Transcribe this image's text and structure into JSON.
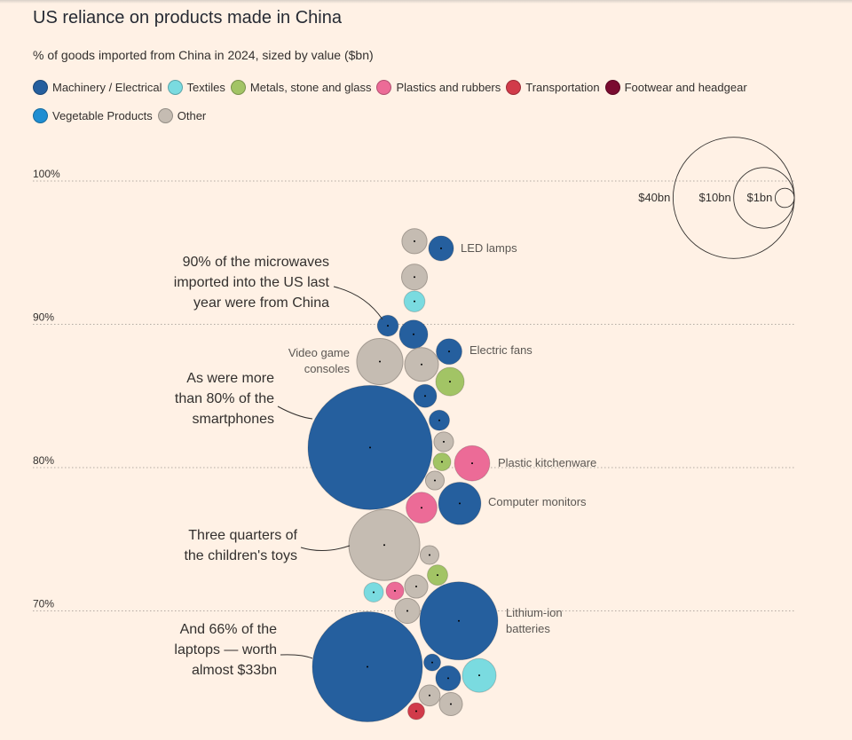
{
  "chart_data": {
    "type": "bubble-beeswarm",
    "title": "US reliance on products made in China",
    "subtitle": "% of goods imported from China in 2024, sized by value ($bn)",
    "y_axis": {
      "ticks": [
        100,
        90,
        80,
        70
      ],
      "tick_labels": [
        "100%",
        "90%",
        "80%",
        "70%"
      ],
      "range": [
        62,
        100
      ],
      "grid": "dotted"
    },
    "legend": [
      {
        "name": "Machinery / Electrical",
        "key": "machinery",
        "color": "#255f9e"
      },
      {
        "name": "Textiles",
        "key": "textiles",
        "color": "#7adbe0"
      },
      {
        "name": "Metals, stone and glass",
        "key": "metals",
        "color": "#a2c465"
      },
      {
        "name": "Plastics and rubbers",
        "key": "plastics",
        "color": "#ec6b97"
      },
      {
        "name": "Transportation",
        "key": "transport",
        "color": "#d13b4a"
      },
      {
        "name": "Footwear and headgear",
        "key": "footwear",
        "color": "#7a0b30"
      },
      {
        "name": "Vegetable Products",
        "key": "vegetable",
        "color": "#1f8ed2"
      },
      {
        "name": "Other",
        "key": "other",
        "color": "#c5bcb2"
      }
    ],
    "size_key": [
      {
        "label": "$40bn",
        "value": 40
      },
      {
        "label": "$10bn",
        "value": 10
      },
      {
        "label": "$1bn",
        "value": 1
      }
    ],
    "bubbles": [
      {
        "pct": 95.8,
        "value": 1.7,
        "category": "other"
      },
      {
        "pct": 95.3,
        "value": 1.7,
        "category": "machinery",
        "label": "LED lamps"
      },
      {
        "pct": 93.3,
        "value": 1.8,
        "category": "other"
      },
      {
        "pct": 91.6,
        "value": 1.2,
        "category": "textiles"
      },
      {
        "pct": 89.9,
        "value": 1.2,
        "category": "machinery"
      },
      {
        "pct": 89.3,
        "value": 2.2,
        "category": "machinery"
      },
      {
        "pct": 87.4,
        "value": 5.8,
        "category": "other",
        "label": "Video game consoles"
      },
      {
        "pct": 88.1,
        "value": 1.8,
        "category": "machinery",
        "label": "Electric fans"
      },
      {
        "pct": 87.2,
        "value": 3.1,
        "category": "other"
      },
      {
        "pct": 86.0,
        "value": 2.2,
        "category": "metals"
      },
      {
        "pct": 85.0,
        "value": 1.45,
        "category": "machinery"
      },
      {
        "pct": 81.4,
        "value": 42,
        "category": "machinery"
      },
      {
        "pct": 83.3,
        "value": 1.13,
        "category": "machinery"
      },
      {
        "pct": 81.8,
        "value": 1.04,
        "category": "other"
      },
      {
        "pct": 80.4,
        "value": 0.86,
        "category": "metals"
      },
      {
        "pct": 80.3,
        "value": 3.4,
        "category": "plastics",
        "label": "Plastic kitchenware"
      },
      {
        "pct": 79.1,
        "value": 0.95,
        "category": "other"
      },
      {
        "pct": 77.5,
        "value": 4.9,
        "category": "machinery",
        "label": "Computer monitors"
      },
      {
        "pct": 77.2,
        "value": 2.6,
        "category": "plastics"
      },
      {
        "pct": 74.6,
        "value": 13.7,
        "category": "other"
      },
      {
        "pct": 73.9,
        "value": 0.95,
        "category": "other"
      },
      {
        "pct": 72.5,
        "value": 1.13,
        "category": "metals"
      },
      {
        "pct": 71.3,
        "value": 1.04,
        "category": "textiles"
      },
      {
        "pct": 71.4,
        "value": 0.86,
        "category": "plastics"
      },
      {
        "pct": 71.7,
        "value": 1.45,
        "category": "other"
      },
      {
        "pct": 70.0,
        "value": 1.7,
        "category": "other"
      },
      {
        "pct": 69.3,
        "value": 16.6,
        "category": "machinery",
        "label": "Lithium-ion batteries"
      },
      {
        "pct": 66.1,
        "value": 33,
        "category": "machinery"
      },
      {
        "pct": 66.4,
        "value": 0.77,
        "category": "machinery"
      },
      {
        "pct": 65.3,
        "value": 1.7,
        "category": "machinery"
      },
      {
        "pct": 65.5,
        "value": 3.1,
        "category": "textiles"
      },
      {
        "pct": 64.1,
        "value": 1.2,
        "category": "other"
      },
      {
        "pct": 63.5,
        "value": 1.45,
        "category": "other"
      },
      {
        "pct": 63.0,
        "value": 0.77,
        "category": "transport"
      }
    ],
    "annotations": [
      {
        "lines": [
          "90% of the microwaves",
          "imported into the US last",
          "year were from China"
        ]
      },
      {
        "lines": [
          "As were more",
          "than 80% of the",
          "smartphones"
        ]
      },
      {
        "lines": [
          "Three quarters of",
          "the children's toys"
        ]
      },
      {
        "lines": [
          "And 66% of the",
          "laptops — worth",
          "almost $33bn"
        ]
      }
    ]
  }
}
